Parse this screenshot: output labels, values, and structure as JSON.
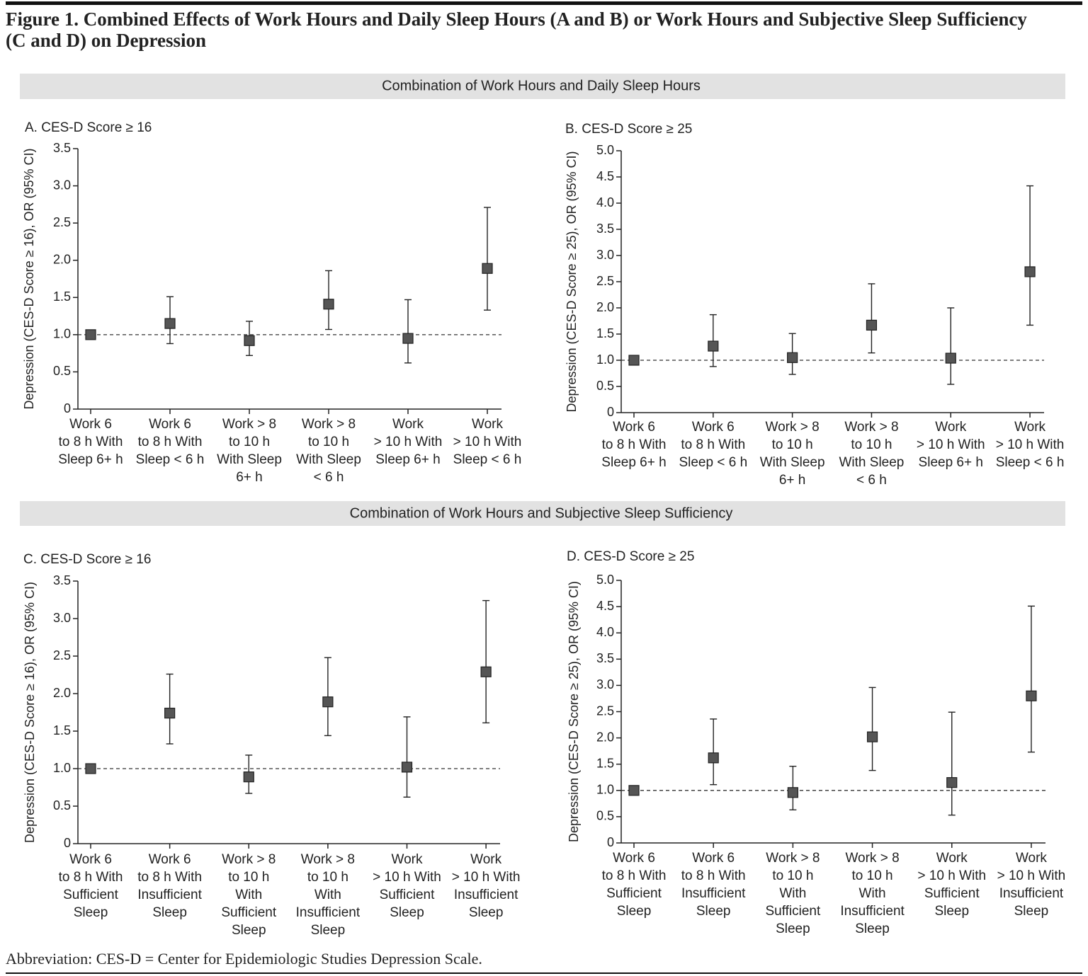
{
  "figure_title": [
    "Figure 1. Combined Effects of Work Hours and Daily Sleep Hours (A and B) or Work Hours and Subjective Sleep Sufficiency",
    "(C and D) on Depression"
  ],
  "sections": [
    "Combination of Work Hours and Daily Sleep Hours",
    "Combination of Work Hours and Subjective Sleep Sufficiency"
  ],
  "footnote": "Abbreviation: CES-D = Center for Epidemiologic Studies Depression Scale.",
  "chart_data": [
    {
      "type": "errorbar",
      "title": "A. CES-D Score ≥ 16",
      "y_label": "Depression (CES-D Score ≥ 16), OR (95% CI)",
      "categories": [
        [
          "Work 6",
          "to 8 h With",
          "Sleep 6+ h"
        ],
        [
          "Work 6",
          "to 8 h With",
          "Sleep < 6 h"
        ],
        [
          "Work > 8",
          "to 10 h",
          "With Sleep",
          "6+ h"
        ],
        [
          "Work > 8",
          "to 10 h",
          "With Sleep",
          "< 6 h"
        ],
        [
          "Work",
          "> 10 h With",
          "Sleep 6+ h"
        ],
        [
          "Work",
          "> 10 h With",
          "Sleep < 6 h"
        ]
      ],
      "values": [
        1.0,
        1.15,
        0.92,
        1.41,
        0.95,
        1.89
      ],
      "ci_low": [
        1.0,
        0.88,
        0.72,
        1.07,
        0.62,
        1.33
      ],
      "ci_high": [
        1.0,
        1.51,
        1.18,
        1.86,
        1.47,
        2.71
      ],
      "reference_line": 1,
      "color": "#555555",
      "ylim": [
        0,
        3.5
      ],
      "yticks": [
        0,
        0.5,
        {
          "value": 1,
          "label": "1.0"
        },
        1.5,
        {
          "value": 2,
          "label": "2.0"
        },
        2.5,
        {
          "value": 3,
          "label": "3.0"
        },
        3.5
      ]
    },
    {
      "type": "errorbar",
      "title": "B. CES-D Score ≥ 25",
      "y_label": "Depression (CES-D Score ≥ 25), OR (95% CI)",
      "categories": [
        [
          "Work 6",
          "to 8 h With",
          "Sleep 6+ h"
        ],
        [
          "Work 6",
          "to 8 h With",
          "Sleep < 6 h"
        ],
        [
          "Work > 8",
          "to 10 h",
          "With Sleep",
          "6+ h"
        ],
        [
          "Work > 8",
          "to 10 h",
          "With Sleep",
          "< 6 h"
        ],
        [
          "Work",
          "> 10 h With",
          "Sleep 6+ h"
        ],
        [
          "Work",
          "> 10 h With",
          "Sleep < 6 h"
        ]
      ],
      "values": [
        1.0,
        1.27,
        1.05,
        1.67,
        1.04,
        2.69
      ],
      "ci_low": [
        1.0,
        0.88,
        0.73,
        1.14,
        0.54,
        1.67
      ],
      "ci_high": [
        1.0,
        1.87,
        1.51,
        2.46,
        2.0,
        4.33
      ],
      "reference_line": 1,
      "color": "#555555",
      "ylim": [
        0,
        5
      ],
      "yticks": [
        0,
        0.5,
        {
          "value": 1,
          "label": "1.0"
        },
        1.5,
        {
          "value": 2,
          "label": "2.0"
        },
        2.5,
        {
          "value": 3,
          "label": "3.0"
        },
        3.5,
        {
          "value": 4,
          "label": "4.0"
        },
        4.5,
        {
          "value": 5,
          "label": "5.0"
        }
      ]
    },
    {
      "type": "errorbar",
      "title": "C. CES-D Score ≥ 16",
      "y_label": "Depression (CES-D Score ≥ 16), OR (95% CI)",
      "categories": [
        [
          "Work 6",
          "to 8 h With",
          "Sufficient",
          "Sleep"
        ],
        [
          "Work 6",
          "to 8 h With",
          "Insufficient",
          "Sleep"
        ],
        [
          "Work > 8",
          "to 10 h",
          "With",
          "Sufficient",
          "Sleep"
        ],
        [
          "Work > 8",
          "to 10 h",
          "With",
          "Insufficient",
          "Sleep"
        ],
        [
          "Work",
          "> 10 h With",
          "Sufficient",
          "Sleep"
        ],
        [
          "Work",
          "> 10 h With",
          "Insufficient",
          "Sleep"
        ]
      ],
      "values": [
        1.0,
        1.74,
        0.89,
        1.89,
        1.02,
        2.29
      ],
      "ci_low": [
        1.0,
        1.33,
        0.67,
        1.44,
        0.62,
        1.61
      ],
      "ci_high": [
        1.0,
        2.26,
        1.18,
        2.48,
        1.69,
        3.24
      ],
      "reference_line": 1,
      "color": "#555555",
      "ylim": [
        0,
        3.5
      ],
      "yticks": [
        0,
        0.5,
        {
          "value": 1,
          "label": "1.0"
        },
        1.5,
        {
          "value": 2,
          "label": "2.0"
        },
        2.5,
        {
          "value": 3,
          "label": "3.0"
        },
        3.5
      ]
    },
    {
      "type": "errorbar",
      "title": "D. CES-D Score ≥ 25",
      "y_label": "Depression (CES-D Score ≥ 25), OR (95% CI)",
      "categories": [
        [
          "Work 6",
          "to 8 h With",
          "Sufficient",
          "Sleep"
        ],
        [
          "Work 6",
          "to 8 h With",
          "Insufficient",
          "Sleep"
        ],
        [
          "Work > 8",
          "to 10 h",
          "With",
          "Sufficient",
          "Sleep"
        ],
        [
          "Work > 8",
          "to 10 h",
          "With",
          "Insufficient",
          "Sleep"
        ],
        [
          "Work",
          "> 10 h With",
          "Sufficient",
          "Sleep"
        ],
        [
          "Work",
          "> 10 h With",
          "Insufficient",
          "Sleep"
        ]
      ],
      "values": [
        1.0,
        1.62,
        0.96,
        2.02,
        1.15,
        2.8
      ],
      "ci_low": [
        1.0,
        1.11,
        0.63,
        1.38,
        0.53,
        1.73
      ],
      "ci_high": [
        1.0,
        2.36,
        1.46,
        2.96,
        2.49,
        4.51
      ],
      "reference_line": 1,
      "color": "#555555",
      "ylim": [
        0,
        5
      ],
      "yticks": [
        0,
        0.5,
        {
          "value": 1,
          "label": "1.0"
        },
        1.5,
        {
          "value": 2,
          "label": "2.0"
        },
        2.5,
        {
          "value": 3,
          "label": "3.0"
        },
        3.5,
        {
          "value": 4,
          "label": "4.0"
        },
        4.5,
        {
          "value": 5,
          "label": "5.0"
        }
      ]
    }
  ]
}
